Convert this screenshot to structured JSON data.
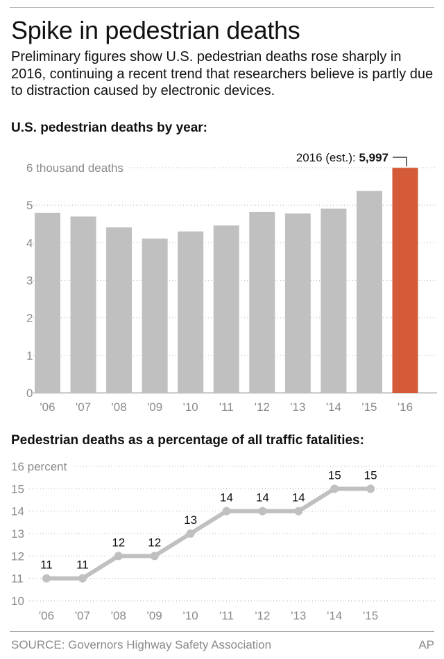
{
  "title": "Spike in pedestrian deaths",
  "subtitle": "Preliminary figures show U.S. pedestrian deaths rose sharply in 2016, continuing a recent trend that researchers believe is partly due to distraction caused by electronic devices.",
  "chart_data": [
    {
      "type": "bar",
      "title": "U.S. pedestrian deaths by year:",
      "categories": [
        "'06",
        "'07",
        "'08",
        "'09",
        "'10",
        "'11",
        "'12",
        "'13",
        "'14",
        "'15",
        "'16"
      ],
      "values": [
        4.8,
        4.7,
        4.41,
        4.11,
        4.3,
        4.46,
        4.82,
        4.78,
        4.91,
        5.38,
        5.997
      ],
      "y_ticks": [
        0,
        1,
        2,
        3,
        4,
        5,
        6
      ],
      "y_tick_labels": [
        "0",
        "1",
        "2",
        "3",
        "4",
        "5",
        "6 thousand deaths"
      ],
      "ylim": [
        0,
        6
      ],
      "grid": true,
      "colors": {
        "bar": "#c0c0c1",
        "highlight": "#d55a37"
      },
      "highlight_index": 10,
      "annotation": {
        "text": "2016 (est.):",
        "value": "5,997"
      }
    },
    {
      "type": "line",
      "title": "Pedestrian deaths as a percentage of all traffic fatalities:",
      "categories": [
        "'06",
        "'07",
        "'08",
        "'09",
        "'10",
        "'11",
        "'12",
        "'13",
        "'14",
        "'15"
      ],
      "values": [
        11,
        11,
        12,
        12,
        13,
        14,
        14,
        14,
        15,
        15
      ],
      "data_labels": [
        "11",
        "11",
        "12",
        "12",
        "13",
        "14",
        "14",
        "14",
        "15",
        "15"
      ],
      "y_ticks": [
        10,
        11,
        12,
        13,
        14,
        15,
        16
      ],
      "y_tick_labels": [
        "10",
        "11",
        "12",
        "13",
        "14",
        "15",
        "16 percent"
      ],
      "ylim": [
        10,
        16
      ],
      "grid": true,
      "colors": {
        "line": "#c0c0c1"
      }
    }
  ],
  "footer": {
    "source": "SOURCE: Governors Highway Safety Association",
    "credit": "AP"
  }
}
